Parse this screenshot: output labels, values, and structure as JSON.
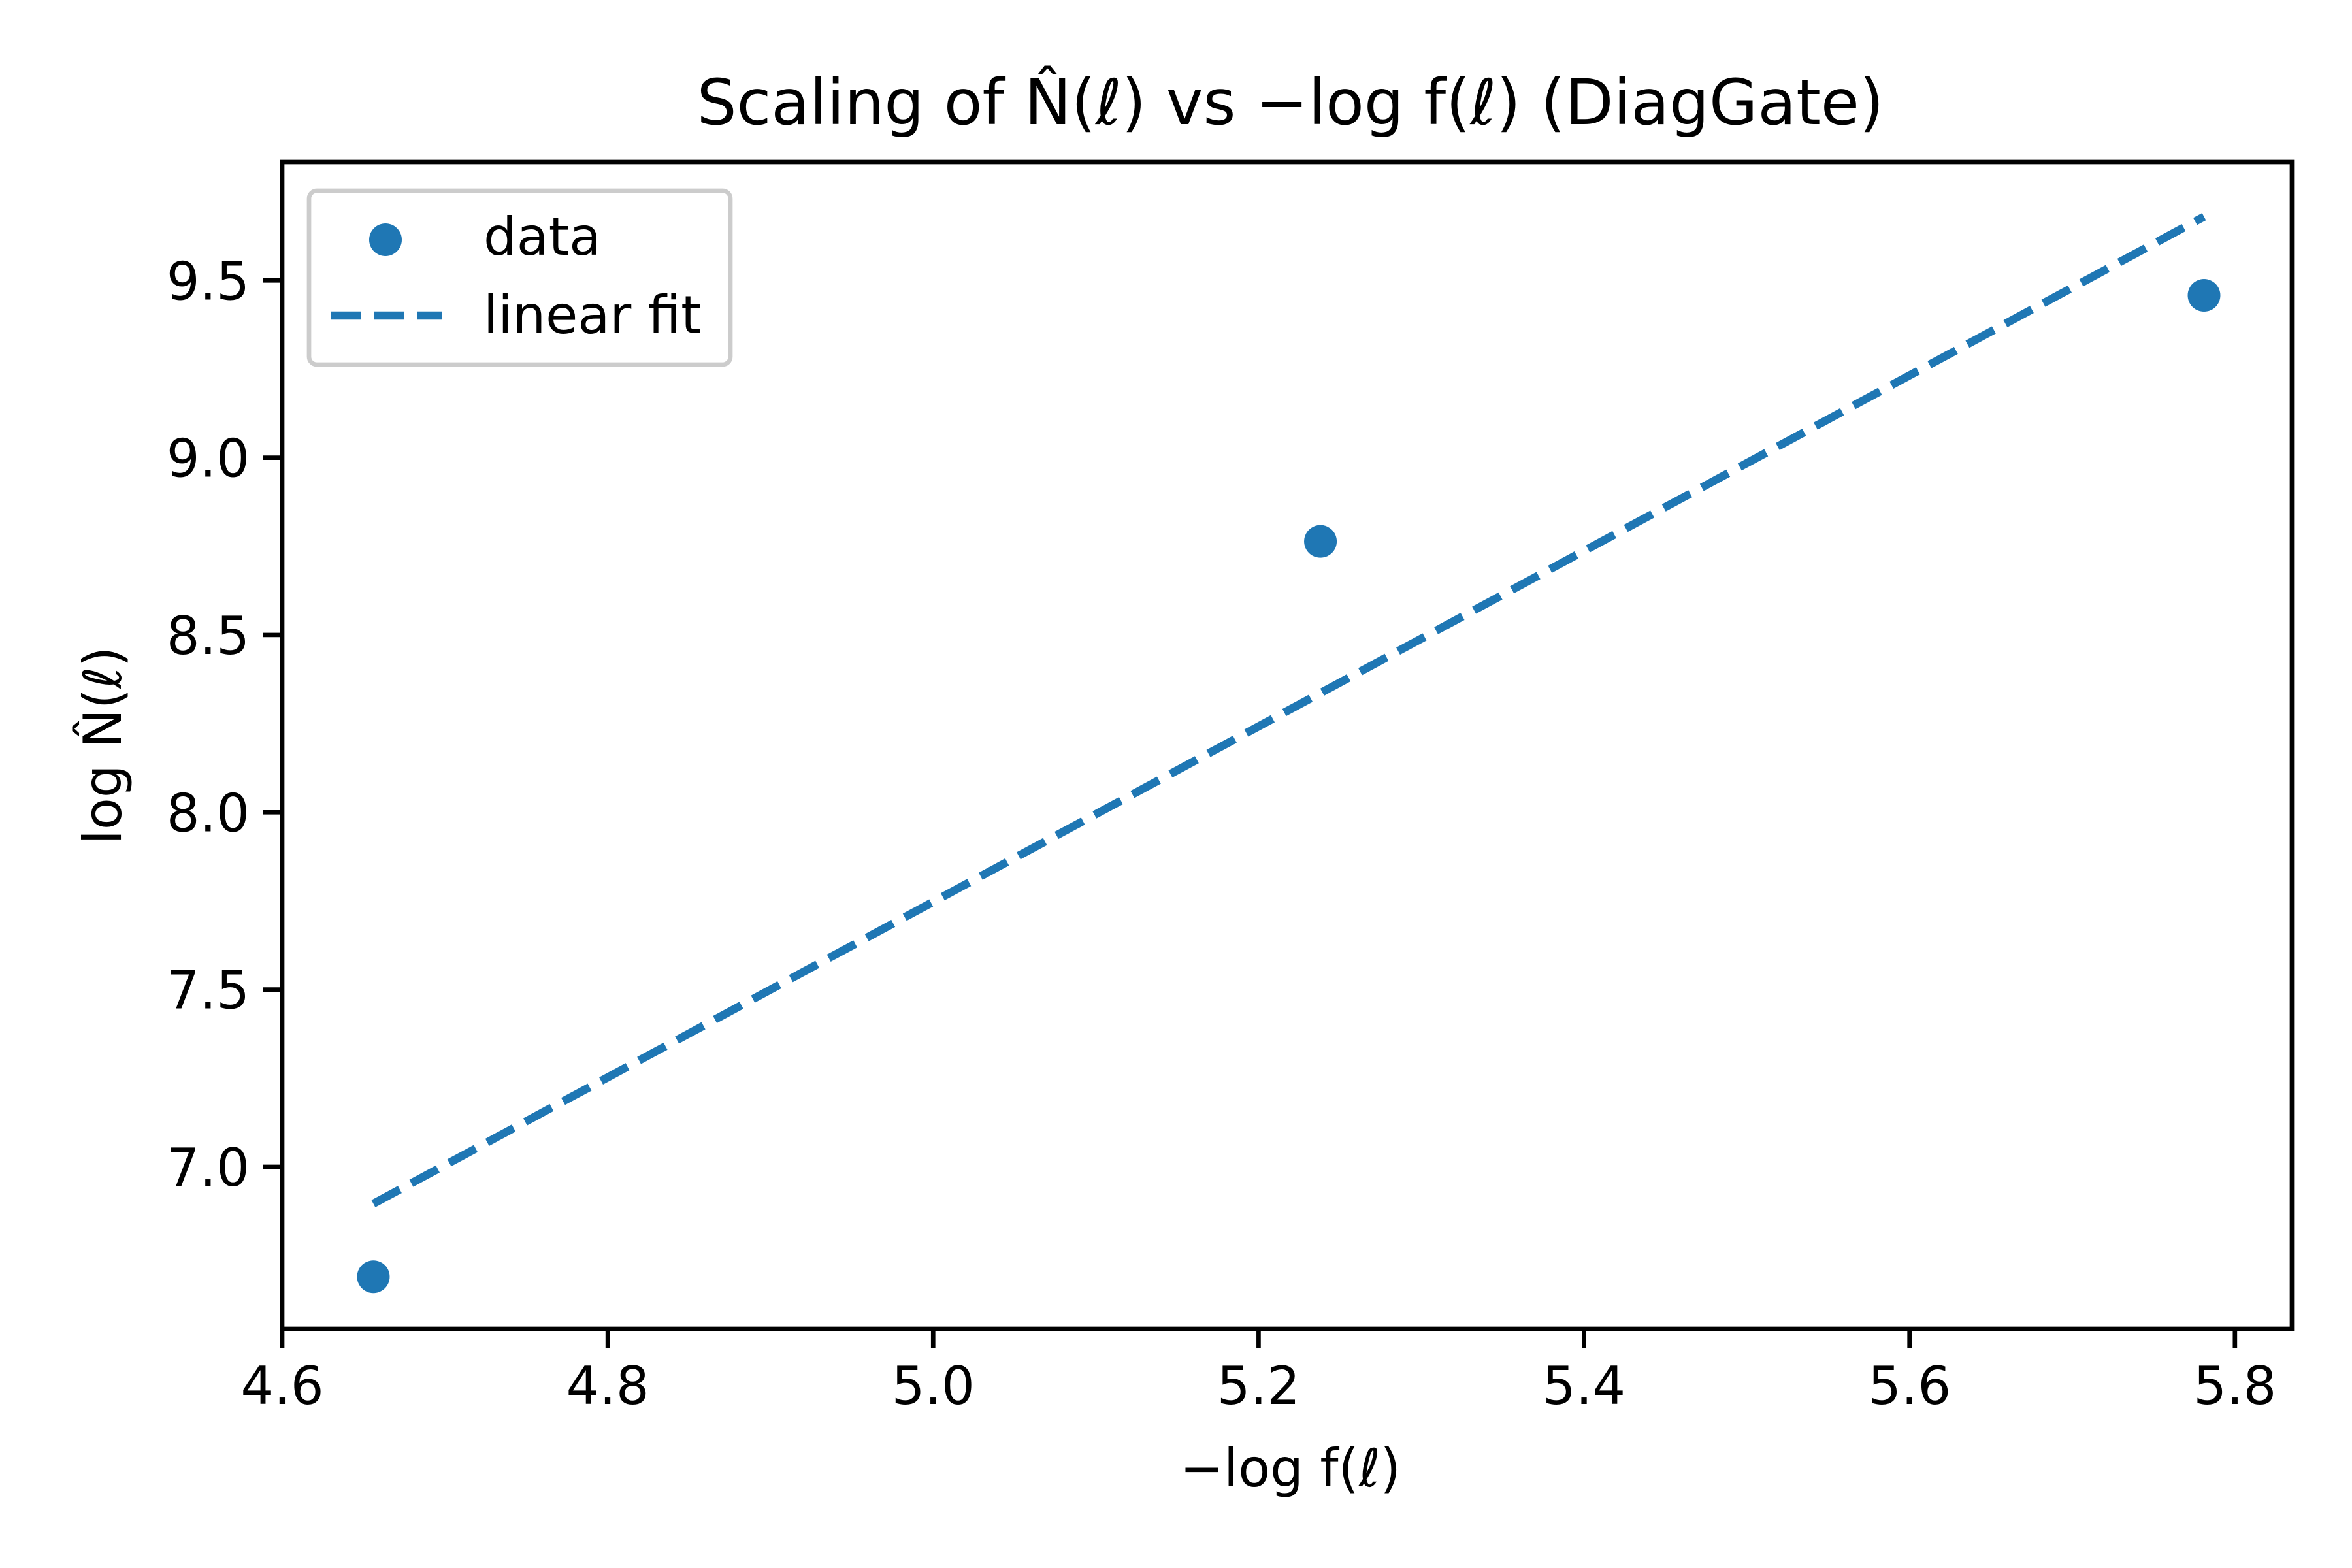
{
  "chart_data": {
    "type": "scatter",
    "title": "Scaling of N̂(ℓ) vs −log f(ℓ) (DiagGate)",
    "xlabel": "−log f(ℓ)",
    "ylabel": "log N̂(ℓ)",
    "xlim": [
      4.6,
      5.835
    ],
    "ylim": [
      6.543,
      9.834
    ],
    "xticks": [
      4.6,
      4.8,
      5.0,
      5.2,
      5.4,
      5.6,
      5.8
    ],
    "xtick_labels": [
      "4.6",
      "4.8",
      "5.0",
      "5.2",
      "5.4",
      "5.6",
      "5.8"
    ],
    "yticks": [
      7.0,
      7.5,
      8.0,
      8.5,
      9.0,
      9.5
    ],
    "ytick_labels": [
      "7.0",
      "7.5",
      "8.0",
      "8.5",
      "9.0",
      "9.5"
    ],
    "grid": false,
    "legend_position": "top-left",
    "series": [
      {
        "name": "data",
        "kind": "scatter",
        "color": "#1f77b4",
        "x": [
          4.656,
          5.238,
          5.781
        ],
        "y": [
          6.69,
          8.764,
          9.458
        ]
      },
      {
        "name": "linear fit",
        "kind": "line",
        "style": "dashed",
        "color": "#1f77b4",
        "x": [
          4.656,
          5.781
        ],
        "y": [
          6.896,
          9.68
        ]
      }
    ]
  }
}
